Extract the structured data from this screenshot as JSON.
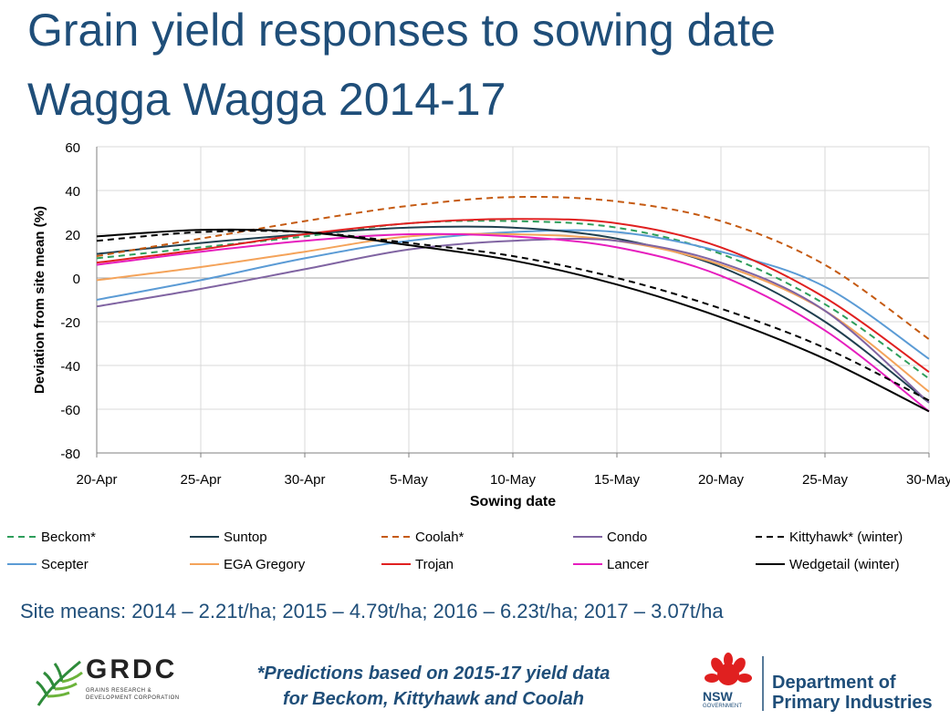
{
  "title": {
    "line1": "Grain yield responses to sowing date",
    "line2": "Wagga Wagga 2014-17"
  },
  "site_means": "Site means: 2014 – 2.21t/ha; 2015 – 4.79t/ha; 2016 – 6.23t/ha; 2017 – 3.07t/ha",
  "footnote": {
    "line1": "*Predictions based on 2015-17 yield data",
    "line2": "for Beckom, Kittyhawk and Coolah"
  },
  "logos": {
    "grdc_name": "GRDC",
    "grdc_sub": "GRAINS RESEARCH & DEVELOPMENT CORPORATION",
    "nsw_label": "NSW",
    "nsw_gov": "GOVERNMENT",
    "dpi_line1": "Department of",
    "dpi_line2": "Primary Industries"
  },
  "colors": {
    "title": "#1f4e79",
    "grid": "#d9d9d9",
    "axis": "#7f7f7f"
  },
  "chart_data": {
    "type": "line",
    "title": "",
    "xlabel": "Sowing date",
    "ylabel": "Deviation from site mean (%)",
    "x": [
      0,
      5,
      10,
      15,
      20,
      25,
      30,
      35,
      40
    ],
    "x_tick_labels": [
      "20-Apr",
      "25-Apr",
      "30-Apr",
      "5-May",
      "10-May",
      "15-May",
      "20-May",
      "25-May",
      "30-May"
    ],
    "xlim": [
      0,
      40
    ],
    "ylim": [
      -80,
      60
    ],
    "y_ticks": [
      -80,
      -60,
      -40,
      -20,
      0,
      20,
      40,
      60
    ],
    "grid": true,
    "legend_position": "bottom",
    "series": [
      {
        "name": "Beckom*",
        "color": "#2e9e5b",
        "dash": "dashed",
        "values": [
          9,
          14,
          19,
          25,
          26,
          23,
          11,
          -12,
          -46
        ]
      },
      {
        "name": "Scepter",
        "color": "#5b9bd5",
        "dash": "solid",
        "values": [
          -10,
          -1,
          9,
          17,
          21,
          21,
          12,
          -4,
          -37
        ]
      },
      {
        "name": "Suntop",
        "color": "#1f3f4f",
        "dash": "solid",
        "values": [
          11,
          16,
          20,
          23,
          23,
          18,
          5,
          -20,
          -57
        ]
      },
      {
        "name": "EGA Gregory",
        "color": "#f4a35a",
        "dash": "solid",
        "values": [
          -1,
          5,
          12,
          19,
          20,
          17,
          6,
          -15,
          -52
        ]
      },
      {
        "name": "Coolah*",
        "color": "#c55a11",
        "dash": "dashed",
        "values": [
          10,
          18,
          26,
          33,
          37,
          35,
          26,
          6,
          -28
        ]
      },
      {
        "name": "Trojan",
        "color": "#e02020",
        "dash": "solid",
        "values": [
          7,
          13,
          20,
          25,
          27,
          25,
          14,
          -9,
          -43
        ]
      },
      {
        "name": "Condo",
        "color": "#8064a2",
        "dash": "solid",
        "values": [
          -13,
          -5,
          4,
          13,
          17,
          17,
          7,
          -15,
          -57
        ]
      },
      {
        "name": "Lancer",
        "color": "#e61ebe",
        "dash": "solid",
        "values": [
          6,
          12,
          17,
          20,
          19,
          14,
          1,
          -24,
          -61
        ]
      },
      {
        "name": "Kittyhawk* (winter)",
        "color": "#000000",
        "dash": "dashed",
        "values": [
          17,
          21,
          21,
          16,
          10,
          0,
          -14,
          -32,
          -56
        ]
      },
      {
        "name": "Wedgetail (winter)",
        "color": "#000000",
        "dash": "solid",
        "values": [
          19,
          22,
          21,
          15,
          8,
          -3,
          -18,
          -37,
          -61
        ]
      }
    ]
  }
}
